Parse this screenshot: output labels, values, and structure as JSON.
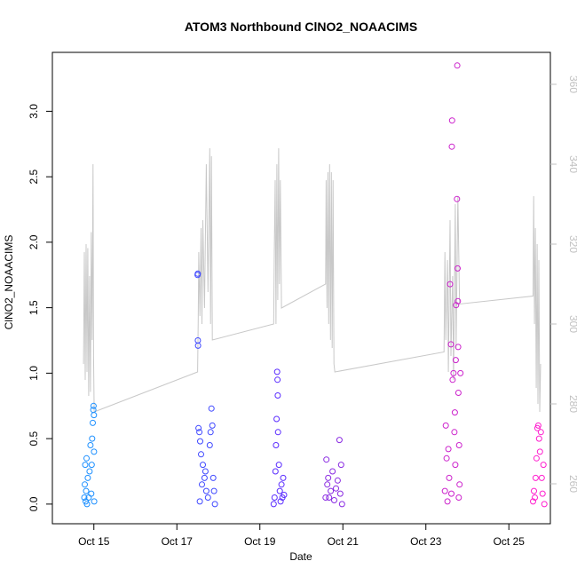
{
  "chart_data": {
    "type": "scatter",
    "title": "ATOM3 Northbound ClNO2_NOAACIMS",
    "xlabel": "Date",
    "ylabel": "ClNO2_NOAACIMS",
    "x_ticks": [
      "Oct 15",
      "Oct 17",
      "Oct 19",
      "Oct 21",
      "Oct 23",
      "Oct 25"
    ],
    "xlim": [
      "2017-10-14",
      "2017-10-26"
    ],
    "x_tick_dates": [
      "2017-10-15",
      "2017-10-17",
      "2017-10-19",
      "2017-10-21",
      "2017-10-23",
      "2017-10-25"
    ],
    "ylim": [
      -0.15,
      3.45
    ],
    "y_ticks": [
      "0.0",
      "0.5",
      "1.0",
      "1.5",
      "2.0",
      "2.5",
      "3.0"
    ],
    "y2lim": [
      250,
      368
    ],
    "y2_ticks": [
      "260",
      "280",
      "300",
      "320",
      "340",
      "360"
    ],
    "colors": {
      "axis": "#000000",
      "secondary": "#c0c0c0"
    },
    "series": [
      {
        "color": "#1e90ff",
        "points": [
          [
            "2017-10-14 18:30",
            0.05
          ],
          [
            "2017-10-14 18:45",
            0.15
          ],
          [
            "2017-10-14 19:00",
            0.3
          ],
          [
            "2017-10-14 19:15",
            0.02
          ],
          [
            "2017-10-14 19:30",
            0.1
          ],
          [
            "2017-10-14 19:45",
            0.35
          ],
          [
            "2017-10-14 20:00",
            0.0
          ],
          [
            "2017-10-14 20:30",
            0.2
          ],
          [
            "2017-10-14 21:00",
            0.05
          ],
          [
            "2017-10-14 21:30",
            0.25
          ],
          [
            "2017-10-14 22:00",
            0.45
          ],
          [
            "2017-10-14 22:30",
            0.08
          ],
          [
            "2017-10-14 23:00",
            0.5
          ],
          [
            "2017-10-14 23:20",
            0.62
          ],
          [
            "2017-10-14 23:40",
            0.72
          ],
          [
            "2017-10-14 23:50",
            0.75
          ],
          [
            "2017-10-15 00:00",
            0.68
          ],
          [
            "2017-10-15 00:05",
            0.4
          ],
          [
            "2017-10-15 00:10",
            0.02
          ],
          [
            "2017-10-14 22:45",
            0.3
          ]
        ]
      },
      {
        "color": "#3f48ff",
        "points": [
          [
            "2017-10-17 12:00",
            1.75
          ],
          [
            "2017-10-17 12:05",
            1.76
          ],
          [
            "2017-10-17 12:10",
            1.25
          ],
          [
            "2017-10-17 12:15",
            1.21
          ],
          [
            "2017-10-17 12:30",
            0.58
          ],
          [
            "2017-10-17 13:00",
            0.55
          ],
          [
            "2017-10-17 13:30",
            0.48
          ],
          [
            "2017-10-17 14:00",
            0.38
          ],
          [
            "2017-10-17 15:00",
            0.3
          ],
          [
            "2017-10-17 16:00",
            0.2
          ],
          [
            "2017-10-17 17:00",
            0.1
          ],
          [
            "2017-10-17 18:00",
            0.05
          ],
          [
            "2017-10-17 19:00",
            0.45
          ],
          [
            "2017-10-17 20:00",
            0.73
          ],
          [
            "2017-10-17 20:30",
            0.6
          ],
          [
            "2017-10-17 21:00",
            0.2
          ],
          [
            "2017-10-17 21:30",
            0.1
          ],
          [
            "2017-10-17 22:00",
            0.0
          ],
          [
            "2017-10-17 13:15",
            0.02
          ],
          [
            "2017-10-17 14:30",
            0.15
          ],
          [
            "2017-10-17 16:30",
            0.25
          ],
          [
            "2017-10-17 19:30",
            0.55
          ]
        ]
      },
      {
        "color": "#5a2cff",
        "points": [
          [
            "2017-10-19 08:00",
            0.0
          ],
          [
            "2017-10-19 08:30",
            0.05
          ],
          [
            "2017-10-19 09:00",
            0.25
          ],
          [
            "2017-10-19 09:20",
            0.45
          ],
          [
            "2017-10-19 09:40",
            0.65
          ],
          [
            "2017-10-19 10:00",
            1.01
          ],
          [
            "2017-10-19 10:10",
            0.95
          ],
          [
            "2017-10-19 10:20",
            0.83
          ],
          [
            "2017-10-19 10:30",
            0.55
          ],
          [
            "2017-10-19 11:00",
            0.3
          ],
          [
            "2017-10-19 11:30",
            0.1
          ],
          [
            "2017-10-19 12:00",
            0.02
          ],
          [
            "2017-10-19 12:30",
            0.15
          ],
          [
            "2017-10-19 13:00",
            0.05
          ],
          [
            "2017-10-19 13:30",
            0.2
          ],
          [
            "2017-10-19 14:00",
            0.07
          ]
        ]
      },
      {
        "color": "#8a2be2",
        "points": [
          [
            "2017-10-20 14:00",
            0.05
          ],
          [
            "2017-10-20 14:30",
            0.34
          ],
          [
            "2017-10-20 15:00",
            0.15
          ],
          [
            "2017-10-20 15:30",
            0.2
          ],
          [
            "2017-10-20 16:00",
            0.05
          ],
          [
            "2017-10-20 17:00",
            0.1
          ],
          [
            "2017-10-20 18:00",
            0.25
          ],
          [
            "2017-10-20 19:00",
            0.03
          ],
          [
            "2017-10-20 20:00",
            0.12
          ],
          [
            "2017-10-20 21:00",
            0.18
          ],
          [
            "2017-10-20 22:00",
            0.49
          ],
          [
            "2017-10-20 22:30",
            0.08
          ],
          [
            "2017-10-20 23:00",
            0.3
          ],
          [
            "2017-10-20 23:30",
            0.0
          ]
        ]
      },
      {
        "color": "#cc22cc",
        "points": [
          [
            "2017-10-23 11:00",
            0.1
          ],
          [
            "2017-10-23 11:30",
            0.6
          ],
          [
            "2017-10-23 12:00",
            0.35
          ],
          [
            "2017-10-23 13:00",
            0.42
          ],
          [
            "2017-10-23 14:00",
            1.68
          ],
          [
            "2017-10-23 14:30",
            1.22
          ],
          [
            "2017-10-23 15:00",
            2.73
          ],
          [
            "2017-10-23 15:10",
            2.93
          ],
          [
            "2017-10-23 15:30",
            0.95
          ],
          [
            "2017-10-23 16:00",
            1.0
          ],
          [
            "2017-10-23 16:30",
            0.55
          ],
          [
            "2017-10-23 17:00",
            0.3
          ],
          [
            "2017-10-23 17:30",
            1.52
          ],
          [
            "2017-10-23 18:00",
            2.33
          ],
          [
            "2017-10-23 18:10",
            3.35
          ],
          [
            "2017-10-23 18:20",
            1.8
          ],
          [
            "2017-10-23 18:30",
            1.55
          ],
          [
            "2017-10-23 18:40",
            1.2
          ],
          [
            "2017-10-23 18:50",
            0.85
          ],
          [
            "2017-10-23 19:00",
            0.05
          ],
          [
            "2017-10-23 19:30",
            0.15
          ],
          [
            "2017-10-23 20:00",
            1.0
          ],
          [
            "2017-10-23 12:30",
            0.02
          ],
          [
            "2017-10-23 13:30",
            0.2
          ],
          [
            "2017-10-23 16:45",
            0.7
          ],
          [
            "2017-10-23 17:15",
            1.1
          ],
          [
            "2017-10-23 19:15",
            0.45
          ],
          [
            "2017-10-23 14:45",
            0.08
          ]
        ]
      },
      {
        "color": "#ff1dce",
        "points": [
          [
            "2017-10-25 14:00",
            0.02
          ],
          [
            "2017-10-25 14:30",
            0.1
          ],
          [
            "2017-10-25 15:00",
            0.05
          ],
          [
            "2017-10-25 15:30",
            0.2
          ],
          [
            "2017-10-25 16:00",
            0.35
          ],
          [
            "2017-10-25 16:30",
            0.58
          ],
          [
            "2017-10-25 17:00",
            0.6
          ],
          [
            "2017-10-25 17:30",
            0.5
          ],
          [
            "2017-10-25 18:00",
            0.4
          ],
          [
            "2017-10-25 18:30",
            0.55
          ],
          [
            "2017-10-25 19:00",
            0.2
          ],
          [
            "2017-10-25 19:30",
            0.08
          ],
          [
            "2017-10-25 20:00",
            0.3
          ],
          [
            "2017-10-25 20:30",
            0.0
          ]
        ]
      }
    ],
    "secondary_line": {
      "axis": "right",
      "color": "#c8c8c8",
      "points": [
        [
          "2017-10-14 18:00",
          290
        ],
        [
          "2017-10-14 18:30",
          318
        ],
        [
          "2017-10-14 19:00",
          286
        ],
        [
          "2017-10-14 19:30",
          320
        ],
        [
          "2017-10-14 20:00",
          288
        ],
        [
          "2017-10-14 20:30",
          319
        ],
        [
          "2017-10-14 21:00",
          282
        ],
        [
          "2017-10-14 21:30",
          312
        ],
        [
          "2017-10-14 22:00",
          283
        ],
        [
          "2017-10-14 22:30",
          323
        ],
        [
          "2017-10-14 23:00",
          296
        ],
        [
          "2017-10-14 23:30",
          340
        ],
        [
          "2017-10-14 23:50",
          292
        ],
        [
          "2017-10-15 00:10",
          278
        ],
        [
          "2017-10-17 12:00",
          288
        ],
        [
          "2017-10-17 12:20",
          301
        ],
        [
          "2017-10-17 12:40",
          318
        ],
        [
          "2017-10-17 13:20",
          302
        ],
        [
          "2017-10-17 14:00",
          324
        ],
        [
          "2017-10-17 14:30",
          300
        ],
        [
          "2017-10-17 15:00",
          326
        ],
        [
          "2017-10-17 16:00",
          304
        ],
        [
          "2017-10-17 17:00",
          340
        ],
        [
          "2017-10-17 18:00",
          308
        ],
        [
          "2017-10-17 19:00",
          344
        ],
        [
          "2017-10-17 19:30",
          300
        ],
        [
          "2017-10-17 20:00",
          342
        ],
        [
          "2017-10-17 20:30",
          296
        ],
        [
          "2017-10-19 08:00",
          300
        ],
        [
          "2017-10-19 08:20",
          318
        ],
        [
          "2017-10-19 08:50",
          336
        ],
        [
          "2017-10-19 09:20",
          300
        ],
        [
          "2017-10-19 09:50",
          340
        ],
        [
          "2017-10-19 10:20",
          306
        ],
        [
          "2017-10-19 10:50",
          344
        ],
        [
          "2017-10-19 11:20",
          310
        ],
        [
          "2017-10-19 11:50",
          336
        ],
        [
          "2017-10-19 12:30",
          304
        ],
        [
          "2017-10-20 14:00",
          310
        ],
        [
          "2017-10-20 14:20",
          336
        ],
        [
          "2017-10-20 14:50",
          304
        ],
        [
          "2017-10-20 15:20",
          338
        ],
        [
          "2017-10-20 15:50",
          300
        ],
        [
          "2017-10-20 16:20",
          340
        ],
        [
          "2017-10-20 16:50",
          296
        ],
        [
          "2017-10-20 17:20",
          338
        ],
        [
          "2017-10-20 17:50",
          294
        ],
        [
          "2017-10-20 18:20",
          336
        ],
        [
          "2017-10-20 18:50",
          290
        ],
        [
          "2017-10-20 19:20",
          288
        ],
        [
          "2017-10-23 10:30",
          293
        ],
        [
          "2017-10-23 11:00",
          318
        ],
        [
          "2017-10-23 11:30",
          296
        ],
        [
          "2017-10-23 12:30",
          316
        ],
        [
          "2017-10-23 13:00",
          288
        ],
        [
          "2017-10-23 14:00",
          326
        ],
        [
          "2017-10-23 14:30",
          292
        ],
        [
          "2017-10-23 15:30",
          312
        ],
        [
          "2017-10-23 16:00",
          286
        ],
        [
          "2017-10-23 17:00",
          330
        ],
        [
          "2017-10-23 17:30",
          294
        ],
        [
          "2017-10-23 18:30",
          332
        ],
        [
          "2017-10-23 19:30",
          305
        ],
        [
          "2017-10-25 14:00",
          307
        ],
        [
          "2017-10-25 14:20",
          332
        ],
        [
          "2017-10-25 14:50",
          300
        ],
        [
          "2017-10-25 15:20",
          324
        ],
        [
          "2017-10-25 15:50",
          284
        ],
        [
          "2017-10-25 16:20",
          320
        ],
        [
          "2017-10-25 16:50",
          280
        ],
        [
          "2017-10-25 17:20",
          316
        ],
        [
          "2017-10-25 17:50",
          278
        ],
        [
          "2017-10-25 18:20",
          290
        ]
      ]
    }
  }
}
